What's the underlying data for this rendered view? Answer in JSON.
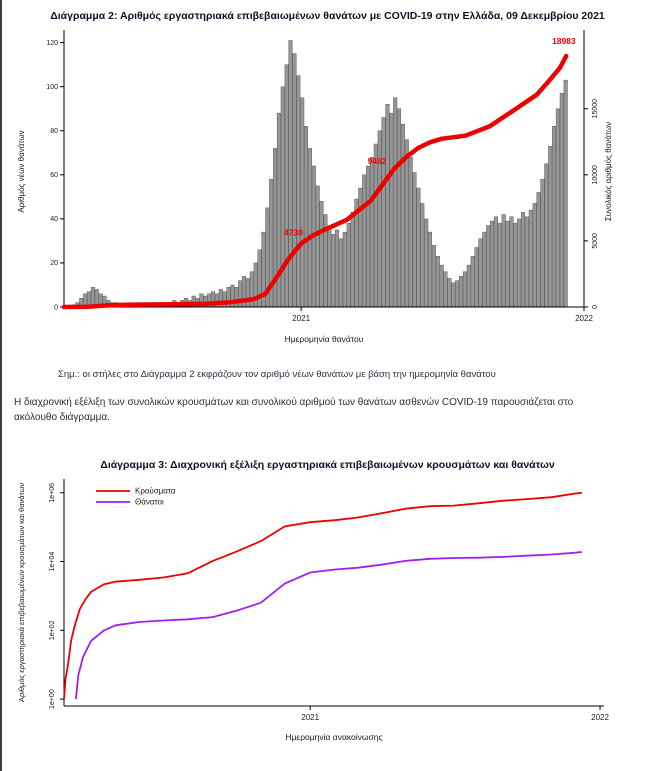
{
  "texts": {
    "note": "Σημ.: οι στήλες στο Διάγραμμα 2 εκφράζουν τον αριθμό νέων θανάτων με βάση την ημερομηνία θανάτου",
    "paragraph": "Η διαχρονική εξέλιξη των συνολικών κρουσμάτων και συνολικού αριθμού των θανάτων ασθενών COVID-19 παρουσιάζεται στο ακόλουθο διάγραμμα."
  },
  "chart_data": [
    {
      "id": "diagram2",
      "type": "bar+line",
      "title": "Διάγραμμα 2: Αριθμός εργαστηριακά επιβεβαιωμένων θανάτων με COVID-19 στην Ελλάδα, 09 Δεκεμβρίου 2021",
      "xlabel": "Ημερομηνία θανάτου",
      "ylabel_left": "Αριθμός νέων θανάτων",
      "ylabel_right": "Συνολικός αριθμός θανάτων",
      "bar_color": "#969696",
      "bar_edge": "#4a4a4a",
      "line_color": "#ee0000",
      "x_domain_days": [
        0,
        671
      ],
      "x_ticks": [
        {
          "label": "2021",
          "day": 306
        },
        {
          "label": "2022",
          "day": 671
        }
      ],
      "y_left": {
        "domain": [
          0,
          123
        ],
        "ticks": [
          0,
          20,
          40,
          60,
          80,
          100,
          120
        ]
      },
      "y_right": {
        "domain": [
          0,
          20500
        ],
        "ticks": [
          0,
          5000,
          10000,
          15000
        ]
      },
      "bars": {
        "step_days": 5,
        "values": [
          0,
          0,
          1,
          2,
          4,
          6,
          7,
          9,
          8,
          6,
          5,
          3,
          2,
          2,
          1,
          1,
          0,
          1,
          1,
          0,
          1,
          1,
          0,
          1,
          1,
          2,
          1,
          2,
          3,
          2,
          3,
          4,
          3,
          5,
          4,
          6,
          5,
          6,
          7,
          6,
          8,
          7,
          9,
          10,
          9,
          12,
          14,
          13,
          16,
          20,
          26,
          34,
          45,
          58,
          72,
          88,
          100,
          110,
          121,
          115,
          105,
          95,
          82,
          72,
          64,
          55,
          48,
          42,
          36,
          33,
          35,
          31,
          34,
          38,
          43,
          49,
          54,
          60,
          64,
          68,
          74,
          80,
          86,
          92,
          88,
          95,
          90,
          83,
          76,
          68,
          61,
          54,
          47,
          40,
          34,
          28,
          23,
          19,
          16,
          13,
          11,
          12,
          14,
          16,
          19,
          23,
          27,
          31,
          34,
          37,
          39,
          41,
          38,
          42,
          39,
          41,
          38,
          40,
          43,
          41,
          44,
          47,
          52,
          58,
          65,
          73,
          82,
          90,
          97,
          103
        ]
      },
      "cumulative": [
        [
          0,
          0
        ],
        [
          31,
          20
        ],
        [
          61,
          145
        ],
        [
          92,
          180
        ],
        [
          122,
          195
        ],
        [
          153,
          215
        ],
        [
          184,
          245
        ],
        [
          214,
          355
        ],
        [
          245,
          600
        ],
        [
          260,
          1000
        ],
        [
          275,
          2300
        ],
        [
          290,
          3650
        ],
        [
          306,
          4800
        ],
        [
          321,
          5400
        ],
        [
          337,
          5870
        ],
        [
          365,
          6600
        ],
        [
          380,
          7300
        ],
        [
          396,
          8050
        ],
        [
          411,
          9250
        ],
        [
          426,
          10450
        ],
        [
          441,
          11320
        ],
        [
          457,
          12030
        ],
        [
          472,
          12450
        ],
        [
          487,
          12720
        ],
        [
          518,
          12960
        ],
        [
          549,
          13660
        ],
        [
          579,
          14830
        ],
        [
          610,
          16050
        ],
        [
          625,
          17050
        ],
        [
          640,
          18100
        ],
        [
          648,
          18983
        ]
      ],
      "annotations": [
        {
          "text": "4730",
          "day": 296,
          "value": 5400
        },
        {
          "text": "9462",
          "day": 404,
          "value": 10800
        },
        {
          "text": "18983",
          "day": 645,
          "value": 19900
        }
      ]
    },
    {
      "id": "diagram3",
      "type": "line-log",
      "title": "Διάγραμμα 3: Διαχρονική εξέλιξη εργαστηριακά επιβεβαιωμένων κρουσμάτων και θανάτων",
      "xlabel": "Ημερομηνία ανακοίνωσης",
      "ylabel": "Αριθμός εργαστηριακά επιβεβαιωμένων κρουσμάτων και θανάτων",
      "x_domain_days": [
        0,
        680
      ],
      "x_ticks": [
        {
          "label": "2021",
          "day": 310
        },
        {
          "label": "2022",
          "day": 675
        }
      ],
      "y_log_domain_exp": [
        -0.2,
        6.4
      ],
      "y_ticks": [
        {
          "label": "1e+00",
          "value": 1
        },
        {
          "label": "1e+02",
          "value": 100
        },
        {
          "label": "1e+04",
          "value": 10000
        },
        {
          "label": "1e+06",
          "value": 1000000
        }
      ],
      "legend_position": "top-left",
      "series": [
        {
          "name": "Κρούσματα",
          "color": "#ee0000",
          "points": [
            [
              0,
              1
            ],
            [
              2,
              4
            ],
            [
              5,
              10
            ],
            [
              9,
              50
            ],
            [
              14,
              150
            ],
            [
              20,
              420
            ],
            [
              27,
              800
            ],
            [
              34,
              1310
            ],
            [
              50,
              2170
            ],
            [
              65,
              2620
            ],
            [
              95,
              2940
            ],
            [
              125,
              3430
            ],
            [
              156,
              4590
            ],
            [
              187,
              10320
            ],
            [
              217,
              19350
            ],
            [
              248,
              39250
            ],
            [
              278,
              105000
            ],
            [
              310,
              139000
            ],
            [
              341,
              159000
            ],
            [
              369,
              190000
            ],
            [
              400,
              252000
            ],
            [
              430,
              344000
            ],
            [
              461,
              406000
            ],
            [
              491,
              424000
            ],
            [
              522,
              495000
            ],
            [
              553,
              586000
            ],
            [
              583,
              656000
            ],
            [
              614,
              742000
            ],
            [
              644,
              952000
            ],
            [
              652,
              1000000
            ]
          ]
        },
        {
          "name": "Θάνατοι",
          "color": "#a020f0",
          "points": [
            [
              15,
              1
            ],
            [
              18,
              5
            ],
            [
              24,
              17
            ],
            [
              34,
              49
            ],
            [
              50,
              98
            ],
            [
              65,
              140
            ],
            [
              95,
              175
            ],
            [
              125,
              193
            ],
            [
              156,
              210
            ],
            [
              187,
              243
            ],
            [
              217,
              370
            ],
            [
              248,
              635
            ],
            [
              278,
              2290
            ],
            [
              310,
              4790
            ],
            [
              341,
              5860
            ],
            [
              369,
              6600
            ],
            [
              400,
              8090
            ],
            [
              430,
              10450
            ],
            [
              461,
              12000
            ],
            [
              491,
              12700
            ],
            [
              522,
              12950
            ],
            [
              553,
              13650
            ],
            [
              583,
              14800
            ],
            [
              614,
              16050
            ],
            [
              644,
              18100
            ],
            [
              652,
              18980
            ]
          ]
        }
      ]
    }
  ]
}
